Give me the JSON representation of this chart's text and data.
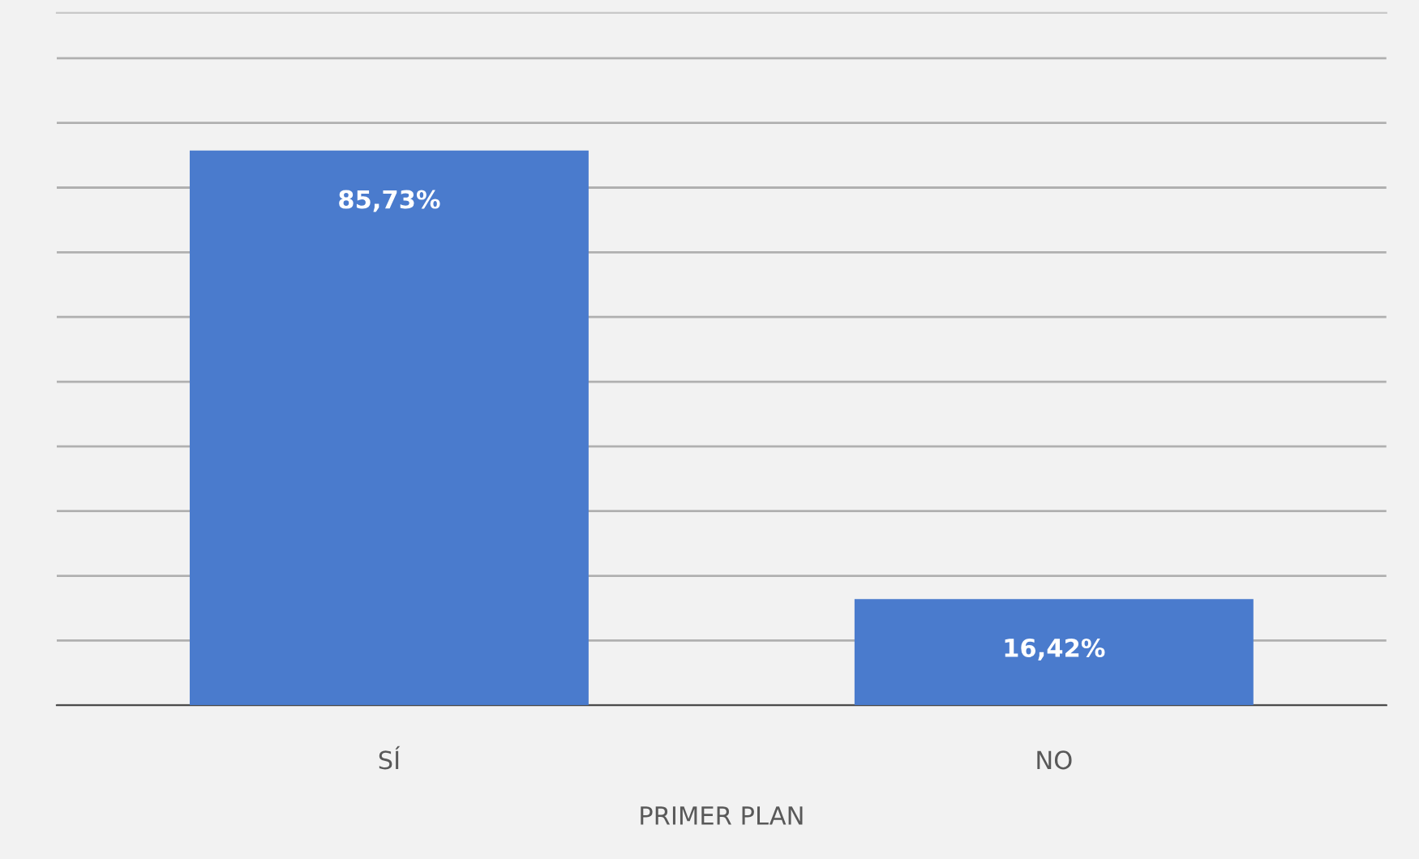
{
  "chart_data": {
    "type": "bar",
    "xlabel": "PRIMER PLAN",
    "categories": [
      "SÍ",
      "NO"
    ],
    "values": [
      85.73,
      16.42
    ],
    "value_labels": [
      "85,73%",
      "16,42%"
    ],
    "color": "#4a7bcd",
    "ylim": [
      0,
      107
    ],
    "yticks": [
      {
        "value": 0,
        "label": null
      },
      {
        "value": 10,
        "label": null
      },
      {
        "value": 20,
        "label": null
      },
      {
        "value": 30,
        "label": null
      },
      {
        "value": 40,
        "label": null
      },
      {
        "value": 50,
        "label": null
      },
      {
        "value": 60,
        "label": null
      },
      {
        "value": 70,
        "label": null
      },
      {
        "value": 80,
        "label": null
      },
      {
        "value": 90,
        "label": null
      },
      {
        "value": 100,
        "label": null
      }
    ],
    "grid": "y",
    "tick_labels": "x"
  }
}
